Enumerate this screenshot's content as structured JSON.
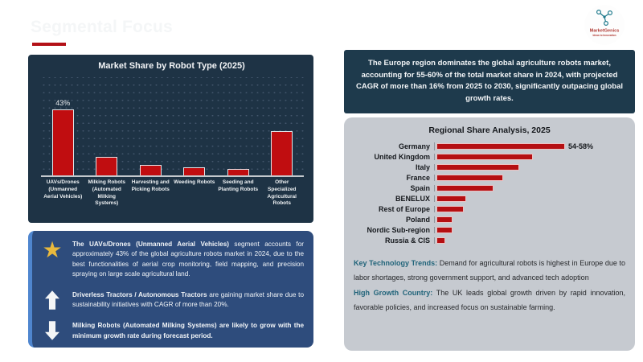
{
  "slide": {
    "title": "Segmental Focus"
  },
  "logo": {
    "name": "MarketGenics",
    "tagline": "Ideas to Innovation"
  },
  "europe_note": "The Europe region dominates the global agriculture robots market, accounting for 55-60% of the total market share in 2024, with projected CAGR of more than 16% from 2025 to 2030, significantly outpacing global growth rates.",
  "chart_data": [
    {
      "type": "bar",
      "title": "Market Share by Robot Type (2025)",
      "categories": [
        "UAVs/Drones (Unmanned Aerial Vehicles)",
        "Milking Robots (Automated Milking Systems)",
        "Harvesting and Picking Robots",
        "Weeding Robots",
        "Seeding and Planting Robots",
        "Other Specialized Agricultural Robots"
      ],
      "values": [
        43,
        12,
        7,
        5,
        4,
        29
      ],
      "data_labels": [
        "43%",
        "",
        "",
        "",
        "",
        ""
      ],
      "unit": "%",
      "ylim": [
        0,
        50
      ],
      "grid": true,
      "bar_color": "#c00d10"
    },
    {
      "type": "bar-horizontal",
      "title": "Regional Share Analysis, 2025",
      "categories": [
        "Germany",
        "United Kingdom",
        "Italy",
        "France",
        "Spain",
        "BENELUX",
        "Rest of Europe",
        "Poland",
        "Nordic Sub-region",
        "Russia & CIS"
      ],
      "values": [
        56,
        42,
        36,
        29,
        25,
        13,
        12,
        7,
        7,
        4
      ],
      "data_labels": [
        "54-58%",
        "",
        "",
        "",
        "",
        "",
        "",
        "",
        "",
        ""
      ],
      "unit": "%",
      "grid": false,
      "bar_color": "#b50f12"
    }
  ],
  "insights": [
    {
      "icon": "star-icon",
      "bold": "The UAVs/Drones (Unmanned Aerial Vehicles)",
      "text": " segment accounts for approximately 43% of the global agriculture robots market in 2024, due to the best functionalities of aerial crop monitoring, field mapping, and precision spraying on large scale agricultural land."
    },
    {
      "icon": "up-arrow-icon",
      "bold": "Driverless Tractors / Autonomous Tractors",
      "text": " are gaining market share due to sustainability initiatives with CAGR of more than 20%."
    },
    {
      "icon": "down-arrow-icon",
      "bold": "Milking Robots (Automated Milking Systems) are likely to grow with the minimum growth rate during forecast period.",
      "text": ""
    }
  ],
  "key_points": [
    {
      "label": "Key Technology Trends:",
      "text": " Demand for agricultural robots is highest in Europe due to labor shortages, strong government support, and advanced tech adoption"
    },
    {
      "label": "High Growth Country:",
      "text": " The UK leads global growth driven by rapid innovation, favorable policies, and increased focus on sustainable farming."
    }
  ],
  "colors": {
    "accent_red": "#b31117",
    "panel_navy": "#1e3345",
    "panel_teal_box": "#1e3a4c",
    "panel_blue": "#2e4c7c",
    "panel_blue_accent": "#4f86cf",
    "panel_gray": "#c6cad0",
    "star_gold": "#e9b93d",
    "key_label_teal": "#21647a",
    "logo_teal": "#1f7a8c",
    "logo_red": "#b03a34"
  }
}
